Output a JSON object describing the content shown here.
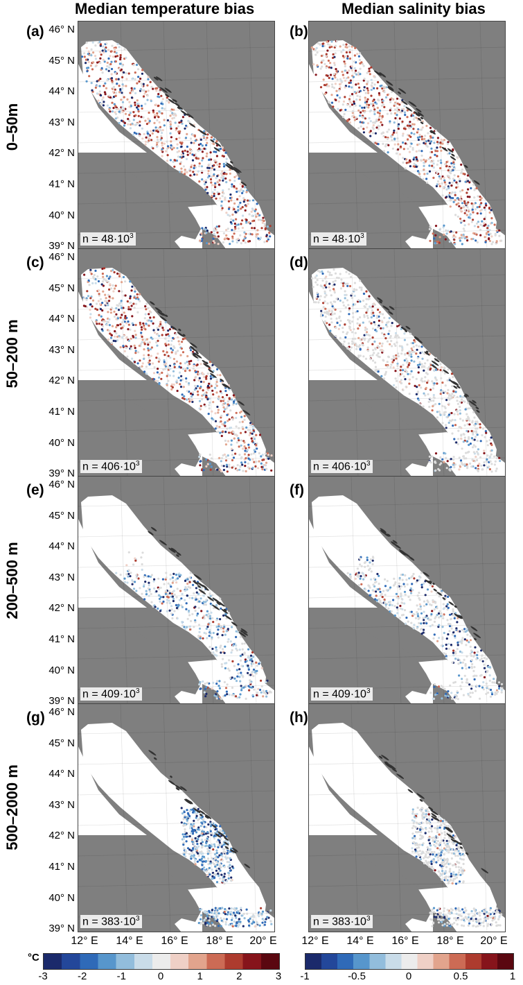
{
  "titles": {
    "temperature": "Median temperature bias",
    "salinity": "Median salinity bias"
  },
  "rows": [
    {
      "label": "0–50m",
      "n_text": "n = 48·10",
      "n_sup": "3",
      "letters": [
        "(a)",
        "(b)"
      ]
    },
    {
      "label": "50–200 m",
      "n_text": "n = 406·10",
      "n_sup": "3",
      "letters": [
        "(c)",
        "(d)"
      ]
    },
    {
      "label": "200–500 m",
      "n_text": "n = 409·10",
      "n_sup": "3",
      "letters": [
        "(e)",
        "(f)"
      ]
    },
    {
      "label": "500–2000 m",
      "n_text": "n = 383·10",
      "n_sup": "3",
      "letters": [
        "(g)",
        "(h)"
      ]
    }
  ],
  "lat_labels": [
    "46° N",
    "45° N",
    "44° N",
    "43° N",
    "42° N",
    "41° N",
    "40° N",
    "39° N"
  ],
  "lon_labels": [
    "12° E",
    "14° E",
    "16° E",
    "18° E",
    "20° E"
  ],
  "colorbars": {
    "temperature": {
      "unit": "°C",
      "ticks": [
        "-3",
        "-2",
        "-1",
        "0",
        "1",
        "2",
        "3"
      ],
      "range": [
        -3,
        3
      ]
    },
    "salinity": {
      "ticks": [
        "-1",
        "-0.5",
        "0",
        "0.5",
        "1"
      ],
      "range": [
        -1,
        1
      ]
    }
  },
  "colors": {
    "land": "#7f7f7f",
    "sea": "#ffffff",
    "negative_strong": "#1b2a6b",
    "neutral": "#e8e8e8",
    "positive_strong": "#6e0b12"
  }
}
